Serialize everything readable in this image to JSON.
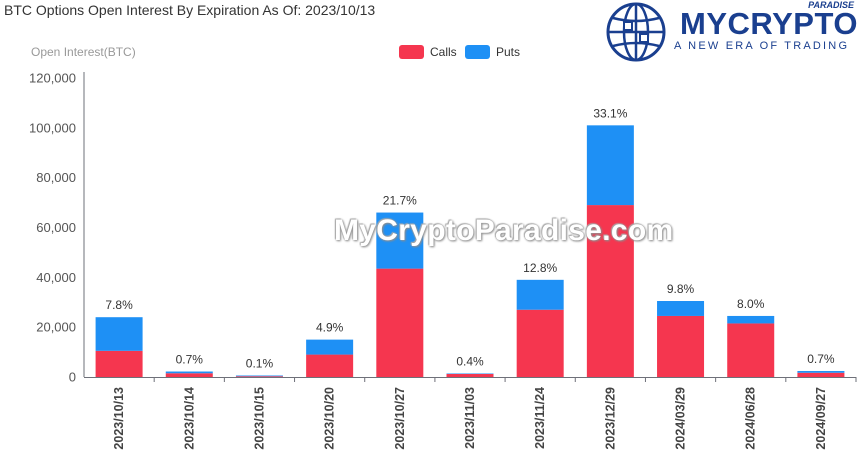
{
  "logo": {
    "name": "MYCRYPTO",
    "super": "PARADISE",
    "tagline": "A NEW ERA OF TRADING"
  },
  "watermark": "MyCryptoParadise.com",
  "colors": {
    "calls": "#f5364f",
    "puts": "#1e90f5"
  },
  "chart_data": {
    "type": "bar",
    "stacked": true,
    "title": "BTC Options Open Interest By Expiration As Of: 2023/10/13",
    "ylabel": "Open Interest(BTC)",
    "xlabel": "",
    "ylim": [
      0,
      120000
    ],
    "yticks": [
      "0",
      "20,000",
      "40,000",
      "60,000",
      "80,000",
      "100,000",
      "120,000"
    ],
    "legend_position": "top-center",
    "categories": [
      "2023/10/13",
      "2023/10/14",
      "2023/10/15",
      "2023/10/20",
      "2023/10/27",
      "2023/11/03",
      "2023/11/24",
      "2023/12/29",
      "2024/03/29",
      "2024/06/28",
      "2024/09/27"
    ],
    "series": [
      {
        "name": "Calls",
        "values": [
          10500,
          1500,
          300,
          9000,
          43500,
          1200,
          27000,
          69000,
          24500,
          21500,
          1700
        ]
      },
      {
        "name": "Puts",
        "values": [
          13500,
          700,
          300,
          6000,
          22500,
          200,
          12000,
          32000,
          6000,
          3000,
          700
        ]
      }
    ],
    "labels": [
      "7.8%",
      "0.7%",
      "0.1%",
      "4.9%",
      "21.7%",
      "0.4%",
      "12.8%",
      "33.1%",
      "9.8%",
      "8.0%",
      "0.7%"
    ]
  }
}
